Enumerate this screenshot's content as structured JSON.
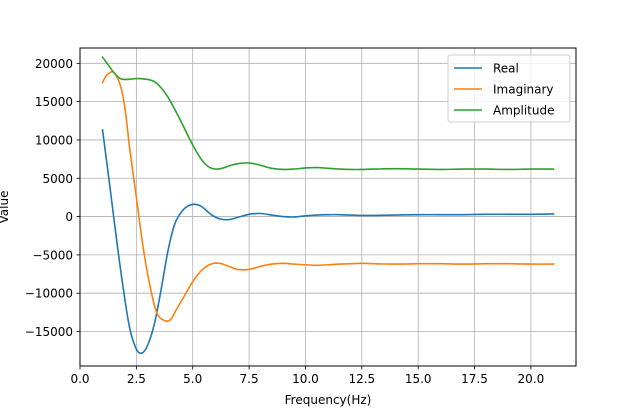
{
  "chart_data": {
    "type": "line",
    "title": "",
    "xlabel": "Frequency(Hz)",
    "ylabel": "Value",
    "xlim": [
      0.0,
      22.0
    ],
    "ylim": [
      -19500,
      22000
    ],
    "xticks": [
      0.0,
      2.5,
      5.0,
      7.5,
      10.0,
      12.5,
      15.0,
      17.5,
      20.0
    ],
    "xtick_labels": [
      "0.0",
      "2.5",
      "5.0",
      "7.5",
      "10.0",
      "12.5",
      "15.0",
      "17.5",
      "20.0"
    ],
    "yticks": [
      -15000,
      -10000,
      -5000,
      0,
      5000,
      10000,
      15000,
      20000
    ],
    "ytick_labels": [
      "−15000",
      "−10000",
      "−5000",
      "0",
      "5000",
      "10000",
      "15000",
      "20000"
    ],
    "grid": true,
    "legend_position": "top-right",
    "series": [
      {
        "name": "Real",
        "color": "#1f77b4",
        "x": [
          1.0,
          1.3,
          1.6,
          1.9,
          2.2,
          2.5,
          2.75,
          3.0,
          3.3,
          3.6,
          3.9,
          4.2,
          4.5,
          4.8,
          5.1,
          5.4,
          5.8,
          6.2,
          6.6,
          7.0,
          7.5,
          8.0,
          8.5,
          9.0,
          9.5,
          10.0,
          10.5,
          11.0,
          11.5,
          12.0,
          12.5,
          13.0,
          14.0,
          15.0,
          16.0,
          17.0,
          18.0,
          19.0,
          20.0,
          21.0
        ],
        "values": [
          11300,
          4500,
          -2500,
          -9000,
          -14500,
          -17300,
          -17800,
          -16800,
          -14000,
          -9500,
          -4500,
          -1000,
          600,
          1400,
          1600,
          1300,
          300,
          -300,
          -400,
          -100,
          300,
          400,
          200,
          0,
          -50,
          100,
          200,
          250,
          250,
          200,
          150,
          150,
          200,
          250,
          250,
          250,
          300,
          300,
          300,
          350
        ]
      },
      {
        "name": "Imaginary",
        "color": "#ff7f0e",
        "x": [
          1.0,
          1.2,
          1.5,
          1.8,
          2.0,
          2.2,
          2.5,
          2.8,
          3.1,
          3.4,
          3.7,
          4.0,
          4.3,
          4.6,
          5.0,
          5.4,
          5.8,
          6.2,
          6.6,
          7.0,
          7.5,
          8.0,
          8.5,
          9.0,
          9.5,
          10.0,
          10.5,
          11.0,
          11.5,
          12.0,
          12.5,
          13.0,
          14.0,
          15.0,
          16.0,
          17.0,
          18.0,
          19.0,
          20.0,
          21.0
        ],
        "values": [
          17500,
          18500,
          18800,
          17000,
          14000,
          9000,
          2500,
          -4000,
          -9000,
          -12500,
          -13500,
          -13500,
          -12000,
          -10500,
          -8500,
          -7000,
          -6200,
          -6100,
          -6500,
          -6900,
          -6900,
          -6500,
          -6200,
          -6100,
          -6200,
          -6300,
          -6350,
          -6300,
          -6200,
          -6150,
          -6100,
          -6150,
          -6200,
          -6150,
          -6150,
          -6200,
          -6150,
          -6150,
          -6200,
          -6200
        ]
      },
      {
        "name": "Amplitude",
        "color": "#2ca02c",
        "x": [
          1.0,
          1.2,
          1.5,
          1.8,
          2.1,
          2.4,
          2.7,
          3.0,
          3.3,
          3.6,
          3.9,
          4.2,
          4.5,
          4.8,
          5.1,
          5.4,
          5.7,
          6.0,
          6.3,
          6.6,
          7.0,
          7.5,
          8.0,
          8.5,
          9.0,
          9.5,
          10.0,
          10.5,
          11.0,
          11.5,
          12.0,
          12.5,
          13.0,
          14.0,
          15.0,
          16.0,
          17.0,
          18.0,
          19.0,
          20.0,
          21.0
        ],
        "values": [
          20800,
          20000,
          18800,
          18000,
          17900,
          18000,
          18000,
          17900,
          17600,
          16800,
          15600,
          14000,
          12300,
          10500,
          8800,
          7400,
          6500,
          6200,
          6300,
          6600,
          6900,
          7000,
          6700,
          6300,
          6150,
          6200,
          6350,
          6400,
          6300,
          6200,
          6150,
          6150,
          6200,
          6250,
          6200,
          6150,
          6200,
          6200,
          6150,
          6200,
          6200
        ]
      }
    ]
  }
}
